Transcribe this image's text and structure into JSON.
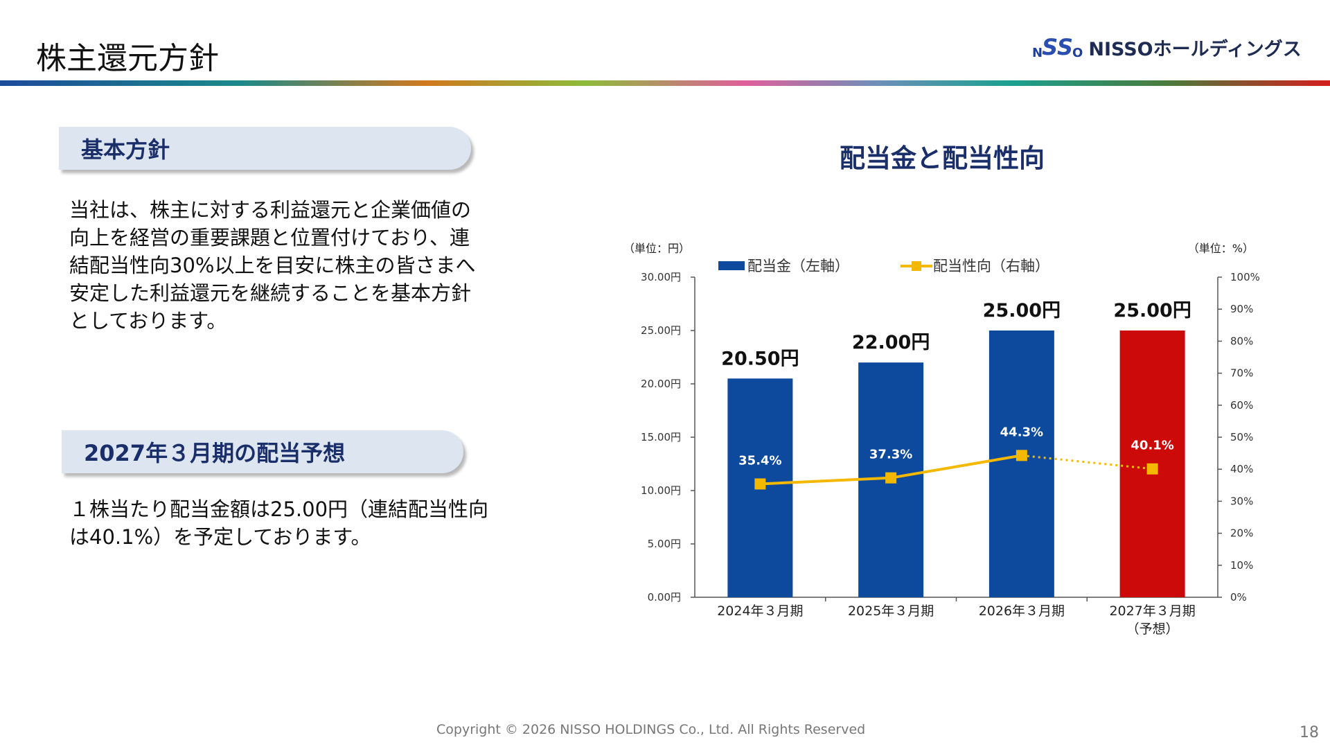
{
  "header": {
    "title": "株主還元方針",
    "logo_mark": {
      "n": "N",
      "ss": "SS",
      "o": "O"
    },
    "logo_text": "NISSOホールディングス"
  },
  "left": {
    "section1": {
      "heading": "基本方針",
      "lines": [
        "当社は、株主に対する利益還元と企業価値の",
        "向上を経営の重要課題と位置付けており、連",
        "結配当性向30%以上を目安に株主の皆さまへ",
        "安定した利益還元を継続することを基本方針",
        "としております。"
      ]
    },
    "section2": {
      "heading": "2027年３月期の配当予想",
      "lines": [
        "１株当たり配当金額は25.00円（連結配当性向",
        "は40.1%）を予定しております。"
      ]
    }
  },
  "chart_title": "配当金と配当性向",
  "chart_data": {
    "type": "bar",
    "categories": [
      [
        "2024年３月期"
      ],
      [
        "2025年３月期"
      ],
      [
        "2026年３月期"
      ],
      [
        "2027年３月期",
        "（予想）"
      ]
    ],
    "series": [
      {
        "name": "配当金（左軸）",
        "type": "bar",
        "axis": "left",
        "values": [
          20.5,
          22.0,
          25.0,
          25.0
        ],
        "labels": [
          "20.50円",
          "22.00円",
          "25.00円",
          "25.00円"
        ]
      },
      {
        "name": "配当性向（右軸）",
        "type": "line",
        "axis": "right",
        "values": [
          35.4,
          37.3,
          44.3,
          40.1
        ],
        "labels": [
          "35.4%",
          "37.3%",
          "44.3%",
          "40.1%"
        ]
      }
    ],
    "y_left": {
      "unit": "（単位：円）",
      "range": [
        0,
        30
      ],
      "ticks": [
        "0.00円",
        "5.00円",
        "10.00円",
        "15.00円",
        "20.00円",
        "25.00円",
        "30.00円"
      ]
    },
    "y_right": {
      "unit": "（単位：%）",
      "range": [
        0,
        100
      ],
      "ticks": [
        "0%",
        "10%",
        "20%",
        "30%",
        "40%",
        "50%",
        "60%",
        "70%",
        "80%",
        "90%",
        "100%"
      ]
    },
    "legend_position": "top",
    "forecast_index": 3,
    "colors": {
      "bar": "#0d4a9e",
      "bar_forecast": "#cc0a0a",
      "line": "#f5b800",
      "axis": "#555555"
    }
  },
  "footer": {
    "copyright": "Copyright © 2026 NISSO HOLDINGS Co., Ltd. All Rights Reserved",
    "page": "18"
  }
}
